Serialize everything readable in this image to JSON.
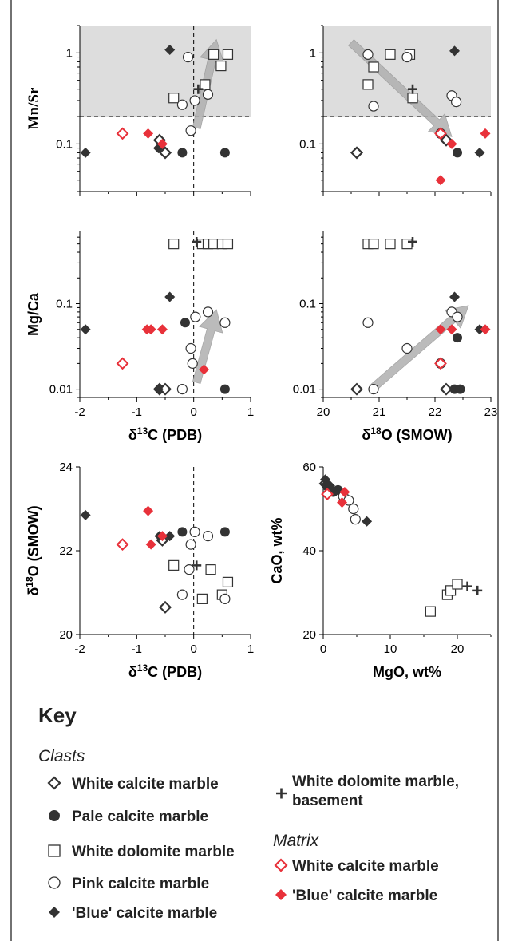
{
  "colors": {
    "black": "#333333",
    "red": "#e8313a",
    "shade": "#d9d9d9",
    "arrow": "#b0b0b0"
  },
  "key": {
    "title": "Key",
    "clasts_heading": "Clasts",
    "matrix_heading": "Matrix",
    "clasts": [
      {
        "marker": "open-diamond",
        "label": "White calcite marble"
      },
      {
        "marker": "filled-circle",
        "label": "Pale calcite marble"
      },
      {
        "marker": "open-square",
        "label": "White dolomite marble"
      },
      {
        "marker": "open-circle",
        "label": "Pink calcite marble"
      },
      {
        "marker": "filled-diamond",
        "label": "'Blue' calcite marble"
      }
    ],
    "basement": {
      "marker": "plus",
      "label_line1": "White dolomite marble,",
      "label_line2": "basement"
    },
    "matrix": [
      {
        "marker": "red-open-diamond",
        "label": "White calcite marble"
      },
      {
        "marker": "red-filled-diamond",
        "label": "'Blue' calcite marble"
      }
    ]
  },
  "chart_data": [
    {
      "id": "mnsr-d13c",
      "type": "scatter",
      "xlabel": "",
      "ylabel": "Mn/Sr",
      "xlim": [
        -2,
        1
      ],
      "ylim": [
        0.03,
        2
      ],
      "yscale": "log",
      "xticks": [],
      "yticks": [
        "1",
        "0.1"
      ],
      "threshold_y": 0.2,
      "vline_x": 0,
      "arrow": {
        "from": [
          0.05,
          0.15
        ],
        "to": [
          0.4,
          1.4
        ]
      },
      "series": [
        {
          "marker": "open-diamond",
          "points": [
            [
              -0.6,
              0.11
            ],
            [
              -0.5,
              0.08
            ]
          ]
        },
        {
          "marker": "filled-circle",
          "points": [
            [
              -0.2,
              0.08
            ],
            [
              0.55,
              0.08
            ]
          ]
        },
        {
          "marker": "open-square",
          "points": [
            [
              -0.35,
              0.32
            ],
            [
              0.2,
              0.45
            ],
            [
              0.35,
              0.96
            ],
            [
              0.48,
              0.72
            ],
            [
              0.6,
              0.96
            ]
          ]
        },
        {
          "marker": "open-circle",
          "points": [
            [
              -0.1,
              0.9
            ],
            [
              0.02,
              0.3
            ],
            [
              -0.05,
              0.14
            ],
            [
              -0.2,
              0.27
            ],
            [
              0.25,
              0.35
            ]
          ]
        },
        {
          "marker": "filled-diamond",
          "points": [
            [
              -1.9,
              0.08
            ],
            [
              -0.42,
              1.08
            ],
            [
              -0.62,
              0.09
            ]
          ]
        },
        {
          "marker": "plus",
          "points": [
            [
              0.08,
              0.4
            ]
          ]
        },
        {
          "marker": "red-open-diamond",
          "points": [
            [
              -1.25,
              0.13
            ]
          ]
        },
        {
          "marker": "red-filled-diamond",
          "points": [
            [
              -0.8,
              0.13
            ],
            [
              -0.55,
              0.1
            ]
          ]
        }
      ]
    },
    {
      "id": "mnsr-d18o",
      "type": "scatter",
      "xlabel": "",
      "ylabel": "",
      "xlim": [
        20,
        23
      ],
      "ylim": [
        0.03,
        2
      ],
      "yscale": "log",
      "xticks": [],
      "yticks": [
        "1",
        "0.1"
      ],
      "threshold_y": 0.2,
      "arrow": {
        "from": [
          20.5,
          1.3
        ],
        "to": [
          22.3,
          0.12
        ]
      },
      "series": [
        {
          "marker": "open-diamond",
          "points": [
            [
              20.6,
              0.08
            ],
            [
              22.2,
              0.11
            ]
          ]
        },
        {
          "marker": "filled-circle",
          "points": [
            [
              22.4,
              0.08
            ]
          ]
        },
        {
          "marker": "open-square",
          "points": [
            [
              20.8,
              0.45
            ],
            [
              20.9,
              0.7
            ],
            [
              21.2,
              0.96
            ],
            [
              21.55,
              0.96
            ],
            [
              21.6,
              0.32
            ]
          ]
        },
        {
          "marker": "open-circle",
          "points": [
            [
              20.8,
              0.96
            ],
            [
              21.5,
              0.9
            ],
            [
              20.9,
              0.26
            ],
            [
              22.3,
              0.34
            ],
            [
              22.38,
              0.29
            ],
            [
              22.1,
              0.13
            ]
          ]
        },
        {
          "marker": "filled-diamond",
          "points": [
            [
              22.35,
              1.05
            ],
            [
              22.8,
              0.08
            ]
          ]
        },
        {
          "marker": "plus",
          "points": [
            [
              21.6,
              0.4
            ]
          ]
        },
        {
          "marker": "red-open-diamond",
          "points": [
            [
              22.1,
              0.13
            ]
          ]
        },
        {
          "marker": "red-filled-diamond",
          "points": [
            [
              22.3,
              0.1
            ],
            [
              22.9,
              0.13
            ],
            [
              22.1,
              0.04
            ]
          ]
        }
      ]
    },
    {
      "id": "mgca-d13c",
      "type": "scatter",
      "xlabel": "δ13C (PDB)",
      "ylabel": "Mg/Ca",
      "xlim": [
        -2,
        1
      ],
      "ylim": [
        0.008,
        0.7
      ],
      "yscale": "log",
      "xticks": [
        "-2",
        "-1",
        "0",
        "1"
      ],
      "yticks": [
        "0.1",
        "0.01"
      ],
      "vline_x": 0,
      "arrow": {
        "from": [
          0.05,
          0.012
        ],
        "to": [
          0.4,
          0.085
        ]
      },
      "series": [
        {
          "marker": "open-diamond",
          "points": [
            [
              -0.6,
              0.01
            ],
            [
              -0.5,
              0.01
            ]
          ]
        },
        {
          "marker": "filled-circle",
          "points": [
            [
              -0.15,
              0.06
            ],
            [
              0.55,
              0.01
            ]
          ]
        },
        {
          "marker": "open-square",
          "points": [
            [
              -0.35,
              0.5
            ],
            [
              0.15,
              0.5
            ],
            [
              0.25,
              0.5
            ],
            [
              0.35,
              0.5
            ],
            [
              0.5,
              0.5
            ],
            [
              0.6,
              0.5
            ]
          ]
        },
        {
          "marker": "open-circle",
          "points": [
            [
              0.03,
              0.07
            ],
            [
              0.25,
              0.08
            ],
            [
              -0.05,
              0.03
            ],
            [
              -0.02,
              0.02
            ],
            [
              -0.2,
              0.01
            ],
            [
              0.55,
              0.06
            ]
          ]
        },
        {
          "marker": "filled-diamond",
          "points": [
            [
              -1.9,
              0.05
            ],
            [
              -0.42,
              0.12
            ],
            [
              -0.62,
              0.01
            ]
          ]
        },
        {
          "marker": "plus",
          "points": [
            [
              0.05,
              0.53
            ]
          ]
        },
        {
          "marker": "red-open-diamond",
          "points": [
            [
              -1.25,
              0.02
            ]
          ]
        },
        {
          "marker": "red-filled-diamond",
          "points": [
            [
              -0.82,
              0.05
            ],
            [
              -0.75,
              0.05
            ],
            [
              -0.55,
              0.05
            ],
            [
              0.18,
              0.017
            ]
          ]
        }
      ]
    },
    {
      "id": "mgca-d18o",
      "type": "scatter",
      "xlabel": "δ18O (SMOW)",
      "ylabel": "",
      "xlim": [
        20,
        23
      ],
      "ylim": [
        0.008,
        0.7
      ],
      "yscale": "log",
      "xticks": [
        "20",
        "21",
        "22",
        "23"
      ],
      "yticks": [
        "0.1",
        "0.01"
      ],
      "arrow": {
        "from": [
          20.9,
          0.0105
        ],
        "to": [
          22.6,
          0.095
        ]
      },
      "series": [
        {
          "marker": "open-diamond",
          "points": [
            [
              20.6,
              0.01
            ],
            [
              22.2,
              0.01
            ]
          ]
        },
        {
          "marker": "filled-circle",
          "points": [
            [
              22.35,
              0.01
            ],
            [
              22.45,
              0.01
            ],
            [
              22.4,
              0.04
            ]
          ]
        },
        {
          "marker": "open-square",
          "points": [
            [
              20.8,
              0.5
            ],
            [
              20.9,
              0.5
            ],
            [
              21.2,
              0.5
            ],
            [
              21.5,
              0.5
            ]
          ]
        },
        {
          "marker": "open-circle",
          "points": [
            [
              20.8,
              0.06
            ],
            [
              21.5,
              0.03
            ],
            [
              20.9,
              0.01
            ],
            [
              22.3,
              0.08
            ],
            [
              22.4,
              0.07
            ],
            [
              22.1,
              0.02
            ]
          ]
        },
        {
          "marker": "filled-diamond",
          "points": [
            [
              22.35,
              0.12
            ],
            [
              22.8,
              0.05
            ]
          ]
        },
        {
          "marker": "plus",
          "points": [
            [
              21.6,
              0.53
            ]
          ]
        },
        {
          "marker": "red-open-diamond",
          "points": [
            [
              22.1,
              0.02
            ]
          ]
        },
        {
          "marker": "red-filled-diamond",
          "points": [
            [
              22.1,
              0.05
            ],
            [
              22.3,
              0.05
            ],
            [
              22.9,
              0.05
            ]
          ]
        }
      ]
    },
    {
      "id": "d18o-d13c",
      "type": "scatter",
      "xlabel": "δ13C (PDB)",
      "ylabel": "δ18O (SMOW)",
      "xlim": [
        -2,
        1
      ],
      "ylim": [
        20,
        24
      ],
      "xticks": [
        "-2",
        "-1",
        "0",
        "1"
      ],
      "yticks": [
        "20",
        "22",
        "24"
      ],
      "vline_x": 0,
      "series": [
        {
          "marker": "open-diamond",
          "points": [
            [
              -0.55,
              22.25
            ],
            [
              -0.5,
              20.65
            ]
          ]
        },
        {
          "marker": "filled-circle",
          "points": [
            [
              -0.2,
              22.45
            ],
            [
              0.55,
              22.45
            ]
          ]
        },
        {
          "marker": "open-square",
          "points": [
            [
              -0.35,
              21.65
            ],
            [
              0.3,
              21.55
            ],
            [
              0.15,
              20.85
            ],
            [
              0.5,
              20.95
            ],
            [
              0.6,
              21.25
            ]
          ]
        },
        {
          "marker": "open-circle",
          "points": [
            [
              0.02,
              22.45
            ],
            [
              0.25,
              22.35
            ],
            [
              -0.05,
              22.15
            ],
            [
              -0.08,
              21.55
            ],
            [
              -0.2,
              20.95
            ],
            [
              0.55,
              20.85
            ]
          ]
        },
        {
          "marker": "filled-diamond",
          "points": [
            [
              -1.9,
              22.85
            ],
            [
              -0.6,
              22.35
            ],
            [
              -0.42,
              22.35
            ]
          ]
        },
        {
          "marker": "plus",
          "points": [
            [
              0.05,
              21.65
            ]
          ]
        },
        {
          "marker": "red-open-diamond",
          "points": [
            [
              -1.25,
              22.15
            ]
          ]
        },
        {
          "marker": "red-filled-diamond",
          "points": [
            [
              -0.8,
              22.95
            ],
            [
              -0.75,
              22.15
            ],
            [
              -0.55,
              22.35
            ]
          ]
        }
      ]
    },
    {
      "id": "cao-mgo",
      "type": "scatter",
      "xlabel": "MgO, wt%",
      "ylabel": "CaO, wt%",
      "xlim": [
        0,
        25
      ],
      "ylim": [
        20,
        60
      ],
      "xticks": [
        "0",
        "10",
        "20"
      ],
      "yticks": [
        "60",
        "40",
        "20"
      ],
      "series": [
        {
          "marker": "open-diamond",
          "points": [
            [
              0.3,
              56
            ],
            [
              0.8,
              55
            ]
          ]
        },
        {
          "marker": "filled-circle",
          "points": [
            [
              0.5,
              55.5
            ],
            [
              1.5,
              54
            ],
            [
              2.2,
              54.5
            ]
          ]
        },
        {
          "marker": "open-square",
          "points": [
            [
              16,
              25.5
            ],
            [
              18.5,
              29.5
            ],
            [
              19,
              30.5
            ],
            [
              20,
              32
            ]
          ]
        },
        {
          "marker": "open-circle",
          "points": [
            [
              3,
              53
            ],
            [
              3.8,
              52
            ],
            [
              4.5,
              50
            ],
            [
              4.8,
              47.5
            ]
          ]
        },
        {
          "marker": "filled-diamond",
          "points": [
            [
              0.3,
              57
            ],
            [
              0.6,
              56
            ],
            [
              1,
              55.5
            ],
            [
              1.3,
              54.5
            ],
            [
              6.5,
              47
            ]
          ]
        },
        {
          "marker": "plus",
          "points": [
            [
              21.5,
              31.5
            ],
            [
              23,
              30.5
            ]
          ]
        },
        {
          "marker": "red-open-diamond",
          "points": [
            [
              0.6,
              53.5
            ]
          ]
        },
        {
          "marker": "red-filled-diamond",
          "points": [
            [
              2.8,
              51.5
            ],
            [
              3.2,
              54
            ]
          ]
        }
      ]
    }
  ]
}
